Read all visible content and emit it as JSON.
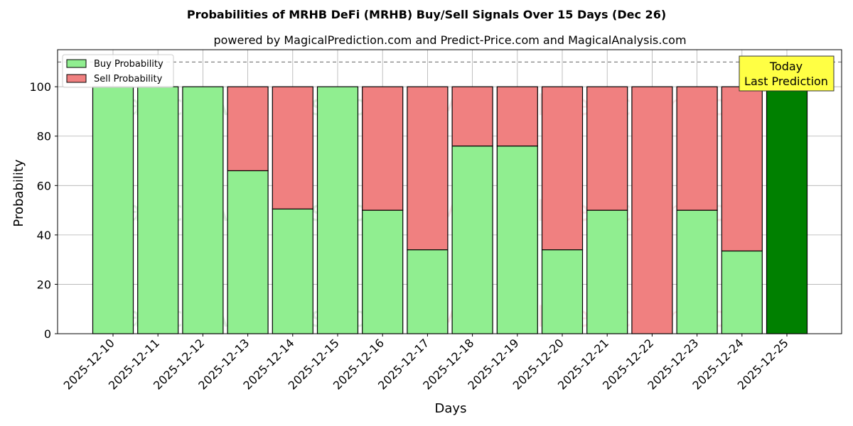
{
  "chart_data": {
    "type": "bar",
    "stacked": true,
    "title": "Probabilities of MRHB DeFi (MRHB) Buy/Sell Signals Over 15 Days (Dec 26)",
    "subtitle": "powered by MagicalPrediction.com and Predict-Price.com and MagicalAnalysis.com",
    "xlabel": "Days",
    "ylabel": "Probability",
    "ylim": [
      0,
      115
    ],
    "yticks": [
      0,
      20,
      40,
      60,
      80,
      100
    ],
    "grid": true,
    "legend_position": "top-left",
    "reference_line": 110,
    "categories": [
      "2025-12-10",
      "2025-12-11",
      "2025-12-12",
      "2025-12-13",
      "2025-12-14",
      "2025-12-15",
      "2025-12-16",
      "2025-12-17",
      "2025-12-18",
      "2025-12-19",
      "2025-12-20",
      "2025-12-21",
      "2025-12-22",
      "2025-12-23",
      "2025-12-24",
      "2025-12-25"
    ],
    "series": [
      {
        "name": "Buy Probability",
        "color": "#90ee90",
        "values": [
          100,
          100,
          100,
          66,
          50.5,
          100,
          50,
          34,
          76,
          76,
          34,
          50,
          0,
          50,
          33.5,
          100
        ]
      },
      {
        "name": "Sell Probability",
        "color": "#f08080",
        "values": [
          0,
          0,
          0,
          34,
          49.5,
          0,
          50,
          66,
          24,
          24,
          66,
          50,
          100,
          50,
          66.5,
          0
        ]
      }
    ],
    "highlight": {
      "index": 15,
      "color": "#008000"
    },
    "annotation": {
      "line1": "Today",
      "line2": "Last Prediction",
      "color": "#ffff44"
    },
    "watermarks": [
      "MagicalAnalysis.com",
      "MagicalPrediction.com"
    ]
  }
}
